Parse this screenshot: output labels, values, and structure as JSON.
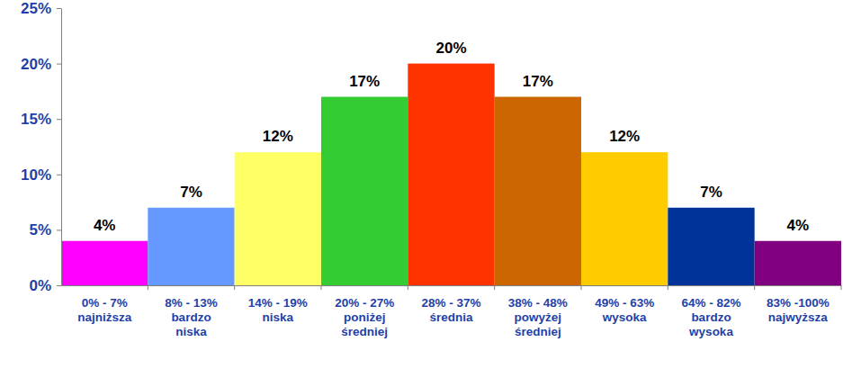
{
  "chart_data": {
    "type": "bar",
    "categories": [
      "0% - 7%\nnajniższa",
      "8% - 13%\nbardzo\nniska",
      "14% - 19%\nniska",
      "20% - 27%\nponiżej\nśredniej",
      "28% - 37%\nśrednia",
      "38% - 48%\npowyżej\nśredniej",
      "49% - 63%\nwysoka",
      "64% - 82%\nbardzo\nwysoka",
      "83% -100%\nnajwyższa"
    ],
    "values": [
      4,
      7,
      12,
      17,
      20,
      17,
      12,
      7,
      4
    ],
    "value_labels": [
      "4%",
      "7%",
      "12%",
      "17%",
      "20%",
      "17%",
      "12%",
      "7%",
      "4%"
    ],
    "colors": [
      "#ff00ff",
      "#6699ff",
      "#ffff66",
      "#33cc33",
      "#ff3300",
      "#cc6600",
      "#ffcc00",
      "#003399",
      "#800080"
    ],
    "ylim": [
      0,
      25
    ],
    "yticks": [
      {
        "value": 0,
        "label": "0%"
      },
      {
        "value": 5,
        "label": "5%"
      },
      {
        "value": 10,
        "label": "10%"
      },
      {
        "value": 15,
        "label": "15%"
      },
      {
        "value": 20,
        "label": "20%"
      },
      {
        "value": 25,
        "label": "25%"
      }
    ],
    "grid": false,
    "data_labels": true
  }
}
